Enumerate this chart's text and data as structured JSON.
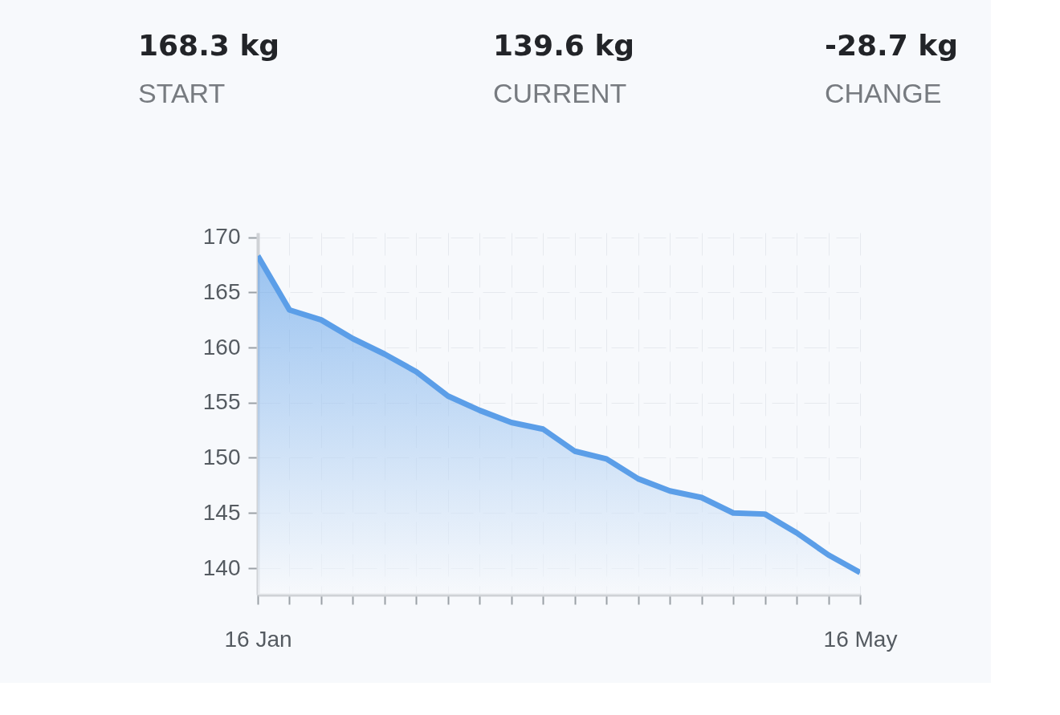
{
  "chart_data": {
    "type": "area",
    "categories": [
      "16 Jan",
      null,
      null,
      null,
      null,
      null,
      null,
      null,
      null,
      null,
      null,
      null,
      null,
      null,
      null,
      null,
      null,
      null,
      null,
      "16 May"
    ],
    "series": [
      {
        "color": "#5b9ee8",
        "values": [
          168.3,
          163.4,
          162.5,
          160.8,
          159.4,
          157.8,
          155.6,
          154.3,
          153.2,
          152.6,
          150.6,
          149.9,
          148.1,
          147.0,
          146.4,
          145.0,
          144.9,
          143.2,
          141.2,
          139.6
        ]
      }
    ],
    "ylim": [
      137.6,
      170.4
    ],
    "yticks": [
      140,
      145,
      150,
      155,
      160,
      165,
      170
    ],
    "grid": true,
    "marker": "none",
    "line_style": "solid",
    "annotations": [
      "168.3 kg",
      "START",
      "139.6 kg",
      "CURRENT",
      "-28.7 kg",
      "CHANGE"
    ]
  }
}
